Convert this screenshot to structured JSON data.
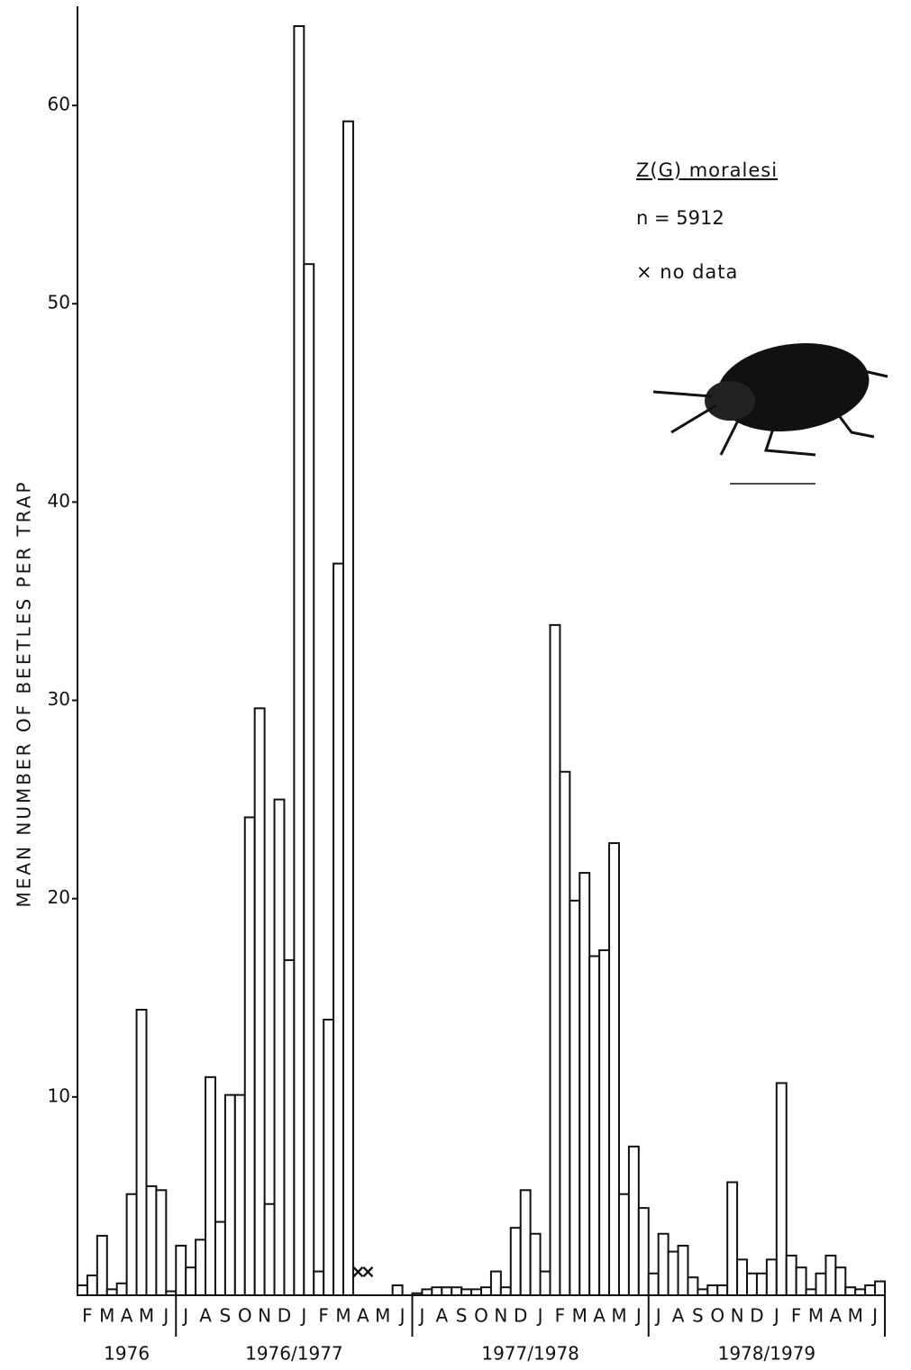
{
  "chart_data": {
    "type": "bar",
    "y_label": "MEAN NUMBER OF BEETLES PER TRAP",
    "legend_title": "Z(G) moralesi",
    "n_label": "n = 5912",
    "no_data_label": "× no data",
    "no_data_mark": "×",
    "color": "#ffffff",
    "ylim": [
      0,
      65
    ],
    "yticks": [
      10,
      20,
      30,
      40,
      50,
      60
    ],
    "categories": [
      "F",
      null,
      "M",
      null,
      "A",
      null,
      "M",
      null,
      "J",
      null,
      "J",
      null,
      "A",
      null,
      "S",
      null,
      "O",
      null,
      "N",
      null,
      "D",
      null,
      "J",
      null,
      "F",
      null,
      "M",
      null,
      "A",
      null,
      "M",
      null,
      "J",
      null,
      "J",
      null,
      "A",
      null,
      "S",
      null,
      "O",
      null,
      "N",
      null,
      "D",
      null,
      "J",
      null,
      "F",
      null,
      "M",
      null,
      "A",
      null,
      "M",
      null,
      "J",
      null,
      "J",
      null,
      "A",
      null,
      "S",
      null,
      "O",
      null,
      "N",
      null,
      "D",
      null,
      "J",
      null,
      "F",
      null,
      "M",
      null,
      "A",
      null,
      "M",
      null,
      "J",
      null
    ],
    "year_labels": [
      "1976",
      "1976/1977",
      "1977/1978",
      "1978/1979"
    ],
    "values": [
      0.5,
      1.0,
      3.0,
      0.3,
      0.6,
      5.1,
      14.4,
      5.5,
      5.3,
      0.2,
      2.5,
      1.4,
      2.8,
      11.0,
      3.7,
      10.1,
      10.1,
      24.1,
      29.6,
      4.6,
      25.0,
      16.9,
      64.0,
      52.0,
      1.2,
      13.9,
      36.9,
      59.2,
      null,
      null,
      0,
      0,
      0.5,
      0,
      0.1,
      0.3,
      0.4,
      0.4,
      0.4,
      0.3,
      0.3,
      0.4,
      1.2,
      0.4,
      3.4,
      5.3,
      3.1,
      1.2,
      33.8,
      26.4,
      19.9,
      21.3,
      17.1,
      17.4,
      22.8,
      5.1,
      7.5,
      4.4,
      1.1,
      3.1,
      2.2,
      2.5,
      0.9,
      0.3,
      0.5,
      0.5,
      5.7,
      1.8,
      1.1,
      1.1,
      1.8,
      10.7,
      2.0,
      1.4,
      0.3,
      1.1,
      2.0,
      1.4,
      0.4,
      0.3,
      0.5,
      0.7
    ]
  }
}
